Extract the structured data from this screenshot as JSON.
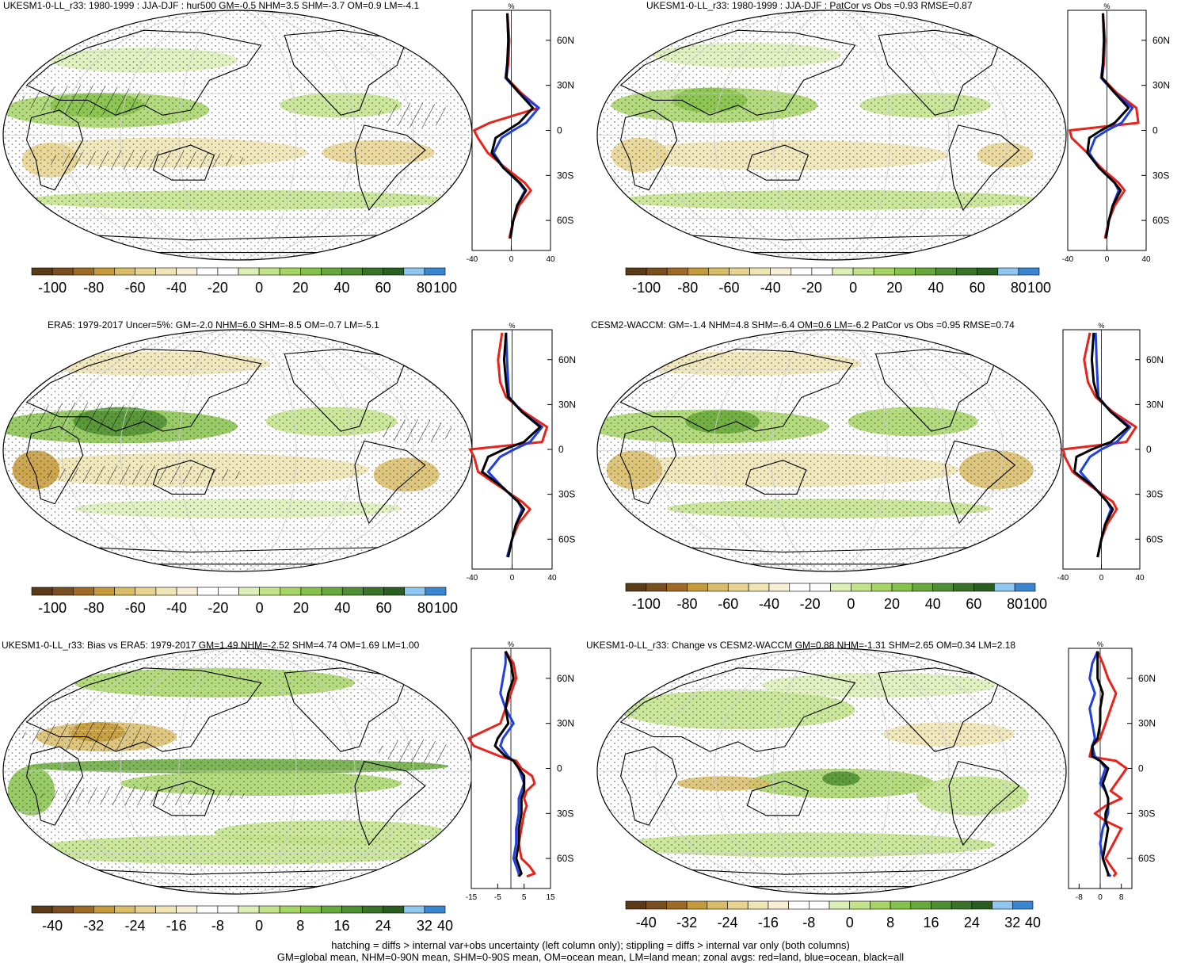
{
  "panels": [
    {
      "title": "UKESM1-0-LL_r33: 1980-1999 : JJA-DJF : hur500 GM=-0.5 NHM=3.5 SHM=-3.7 OM=0.9 LM=-4.1",
      "colorbar_labels": [
        "-100",
        "-80",
        "-60",
        "-40",
        "-20",
        "0",
        "20",
        "40",
        "60",
        "80",
        "100"
      ],
      "hatching": true,
      "profile": {
        "unit_label": "%",
        "x_tick_labels": [
          "-40",
          "0",
          "40"
        ],
        "xlim": [
          -40,
          40
        ],
        "y_tick_labels": [
          "60N",
          "30N",
          "0",
          "30S",
          "60S"
        ],
        "lines": [
          {
            "name": "land",
            "color": "#e8231c",
            "lat": [
              78,
              60,
              45,
              35,
              25,
              15,
              5,
              0,
              -5,
              -15,
              -25,
              -35,
              -40,
              -50,
              -60,
              -72
            ],
            "value": [
              -4,
              -2,
              -3,
              -5,
              10,
              28,
              -22,
              -38,
              -34,
              -24,
              -6,
              14,
              20,
              8,
              2,
              -2
            ]
          },
          {
            "name": "ocean",
            "color": "#1f3fe0",
            "lat": [
              78,
              60,
              45,
              35,
              25,
              15,
              5,
              0,
              -5,
              -15,
              -25,
              -35,
              -40,
              -50,
              -60,
              -72
            ],
            "value": [
              -4,
              -3,
              -4,
              -6,
              8,
              28,
              15,
              2,
              -10,
              -18,
              -8,
              8,
              14,
              6,
              2,
              -1
            ]
          },
          {
            "name": "all",
            "color": "#000000",
            "lat": [
              78,
              60,
              45,
              35,
              25,
              15,
              5,
              0,
              -5,
              -15,
              -25,
              -35,
              -40,
              -50,
              -60,
              -72
            ],
            "value": [
              -4,
              -3,
              -4,
              -5,
              8,
              22,
              8,
              -4,
              -16,
              -20,
              -8,
              9,
              15,
              6,
              2,
              -1
            ]
          }
        ]
      }
    },
    {
      "title": "UKESM1-0-LL_r33: 1980-1999 : JJA-DJF : PatCor vs Obs =0.93 RMSE=0.87",
      "colorbar_labels": [
        "-100",
        "-80",
        "-60",
        "-40",
        "-20",
        "0",
        "20",
        "40",
        "60",
        "80",
        "100"
      ],
      "hatching": false,
      "profile": {
        "unit_label": "%",
        "x_tick_labels": [
          "-40",
          "0",
          "40"
        ],
        "xlim": [
          -40,
          40
        ],
        "y_tick_labels": [
          "60N",
          "30N",
          "0",
          "30S",
          "60S"
        ],
        "lines": [
          {
            "name": "land",
            "color": "#e8231c",
            "lat": [
              78,
              60,
              45,
              35,
              25,
              15,
              5,
              0,
              -5,
              -15,
              -25,
              -35,
              -40,
              -50,
              -60,
              -72
            ],
            "value": [
              -4,
              -2,
              -3,
              -5,
              10,
              30,
              32,
              -38,
              -36,
              -20,
              -6,
              12,
              18,
              8,
              2,
              -2
            ]
          },
          {
            "name": "ocean",
            "color": "#1f3fe0",
            "lat": [
              78,
              60,
              45,
              35,
              25,
              15,
              5,
              0,
              -5,
              -15,
              -25,
              -35,
              -40,
              -50,
              -60,
              -72
            ],
            "value": [
              -4,
              -3,
              -4,
              -6,
              8,
              26,
              15,
              0,
              -12,
              -18,
              -8,
              8,
              12,
              6,
              2,
              -1
            ]
          },
          {
            "name": "all",
            "color": "#000000",
            "lat": [
              78,
              60,
              45,
              35,
              25,
              15,
              5,
              0,
              -5,
              -15,
              -25,
              -35,
              -40,
              -50,
              -60,
              -72
            ],
            "value": [
              -4,
              -3,
              -4,
              -5,
              8,
              22,
              8,
              -6,
              -18,
              -20,
              -8,
              8,
              14,
              6,
              2,
              -1
            ]
          }
        ]
      }
    },
    {
      "title": "ERA5: 1979-2017 Uncer=5%: GM=-2.0 NHM=6.0 SHM=-8.5 OM=-0.7 LM=-5.1",
      "colorbar_labels": [
        "-100",
        "-80",
        "-60",
        "-40",
        "-20",
        "0",
        "20",
        "40",
        "60",
        "80",
        "100"
      ],
      "hatching": true,
      "profile": {
        "unit_label": "%",
        "x_tick_labels": [
          "-40",
          "0",
          "40"
        ],
        "xlim": [
          -40,
          40
        ],
        "y_tick_labels": [
          "60N",
          "30N",
          "0",
          "30S",
          "60S"
        ],
        "lines": [
          {
            "name": "land",
            "color": "#e8231c",
            "lat": [
              78,
              60,
              45,
              35,
              25,
              15,
              5,
              0,
              -5,
              -15,
              -25,
              -35,
              -40,
              -50,
              -60,
              -72
            ],
            "value": [
              -10,
              -14,
              -12,
              -6,
              12,
              35,
              30,
              -42,
              -38,
              -34,
              -12,
              10,
              18,
              6,
              0,
              -4
            ]
          },
          {
            "name": "ocean",
            "color": "#1f3fe0",
            "lat": [
              78,
              60,
              45,
              35,
              25,
              15,
              5,
              0,
              -5,
              -15,
              -25,
              -35,
              -40,
              -50,
              -60,
              -72
            ],
            "value": [
              -6,
              -5,
              -4,
              -3,
              10,
              30,
              18,
              2,
              -12,
              -24,
              -10,
              6,
              10,
              4,
              0,
              -5
            ]
          },
          {
            "name": "all",
            "color": "#000000",
            "lat": [
              78,
              60,
              45,
              35,
              25,
              15,
              5,
              0,
              -5,
              -15,
              -25,
              -35,
              -40,
              -50,
              -60,
              -72
            ],
            "value": [
              -6,
              -8,
              -6,
              -4,
              10,
              28,
              12,
              -8,
              -24,
              -30,
              -10,
              6,
              12,
              4,
              0,
              -4
            ]
          }
        ]
      }
    },
    {
      "title": "CESM2-WACCM: GM=-1.4 NHM=4.8 SHM=-6.4 OM=0.6 LM=-6.2 PatCor vs Obs =0.95 RMSE=0.74",
      "colorbar_labels": [
        "-100",
        "-80",
        "-60",
        "-40",
        "-20",
        "0",
        "20",
        "40",
        "60",
        "80",
        "100"
      ],
      "hatching": false,
      "profile": {
        "unit_label": "%",
        "x_tick_labels": [
          "-40",
          "0",
          "40"
        ],
        "xlim": [
          -40,
          40
        ],
        "y_tick_labels": [
          "60N",
          "30N",
          "0",
          "30S",
          "60S"
        ],
        "lines": [
          {
            "name": "land",
            "color": "#e8231c",
            "lat": [
              78,
              60,
              45,
              35,
              25,
              15,
              5,
              0,
              -5,
              -15,
              -25,
              -35,
              -40,
              -50,
              -60,
              -72
            ],
            "value": [
              -12,
              -18,
              -14,
              -6,
              12,
              36,
              26,
              -40,
              -38,
              -30,
              -10,
              12,
              16,
              6,
              0,
              -4
            ]
          },
          {
            "name": "ocean",
            "color": "#1f3fe0",
            "lat": [
              78,
              60,
              45,
              35,
              25,
              15,
              5,
              0,
              -5,
              -15,
              -25,
              -35,
              -40,
              -50,
              -60,
              -72
            ],
            "value": [
              -6,
              -5,
              -4,
              -3,
              10,
              30,
              16,
              0,
              -12,
              -22,
              -8,
              6,
              10,
              4,
              0,
              -4
            ]
          },
          {
            "name": "all",
            "color": "#000000",
            "lat": [
              78,
              60,
              45,
              35,
              25,
              15,
              5,
              0,
              -5,
              -15,
              -25,
              -35,
              -40,
              -50,
              -60,
              -72
            ],
            "value": [
              -8,
              -10,
              -8,
              -4,
              10,
              28,
              10,
              -10,
              -26,
              -28,
              -8,
              6,
              12,
              4,
              0,
              -4
            ]
          }
        ]
      }
    },
    {
      "title": "UKESM1-0-LL_r33: Bias vs ERA5: 1979-2017 GM=1.49 NHM=-2.52 SHM=4.74 OM=1.69 LM=1.00",
      "colorbar_labels": [
        "-40",
        "-32",
        "-24",
        "-16",
        "-8",
        "0",
        "8",
        "16",
        "24",
        "32",
        "40"
      ],
      "hatching": true,
      "profile": {
        "unit_label": "%",
        "x_tick_labels": [
          "-15",
          "-5",
          "5",
          "15"
        ],
        "xlim": [
          -15,
          15
        ],
        "y_tick_labels": [
          "60N",
          "30N",
          "0",
          "30S",
          "60S"
        ],
        "lines": [
          {
            "name": "land",
            "color": "#e8231c",
            "lat": [
              78,
              70,
              60,
              50,
              40,
              30,
              20,
              15,
              8,
              5,
              0,
              -5,
              -10,
              -15,
              -20,
              -25,
              -30,
              -40,
              -50,
              -60,
              -65,
              -70,
              -72
            ],
            "value": [
              -2,
              1,
              2,
              0,
              -2,
              -4,
              -16,
              -14,
              -4,
              2,
              4,
              8,
              9,
              6,
              5,
              6,
              5,
              4,
              3,
              4,
              7,
              9,
              6
            ]
          },
          {
            "name": "ocean",
            "color": "#1f3fe0",
            "lat": [
              78,
              70,
              60,
              50,
              40,
              30,
              20,
              15,
              8,
              5,
              0,
              -5,
              -10,
              -15,
              -20,
              -25,
              -30,
              -40,
              -50,
              -60,
              -65,
              -70,
              -72
            ],
            "value": [
              -2,
              -2,
              -3,
              -4,
              -2,
              1,
              -3,
              -4,
              -1,
              1,
              3,
              4,
              5,
              4,
              3,
              3,
              3,
              2,
              2,
              1,
              2,
              3,
              3
            ]
          },
          {
            "name": "all",
            "color": "#000000",
            "lat": [
              78,
              70,
              60,
              50,
              40,
              30,
              20,
              15,
              8,
              5,
              0,
              -5,
              -10,
              -15,
              -20,
              -25,
              -30,
              -40,
              -50,
              -60,
              -65,
              -70,
              -72
            ],
            "value": [
              -2,
              0,
              1,
              -1,
              -2,
              -1,
              -5,
              -6,
              -2,
              1,
              3,
              5,
              5,
              5,
              4,
              4,
              4,
              3,
              3,
              2,
              3,
              4,
              3
            ]
          }
        ]
      }
    },
    {
      "title": "UKESM1-0-LL_r33: Change vs CESM2-WACCM GM=0.88 NHM=-1.31 SHM=2.65 OM=0.34 LM=2.18",
      "colorbar_labels": [
        "-40",
        "-32",
        "-24",
        "-16",
        "-8",
        "0",
        "8",
        "16",
        "24",
        "32",
        "40"
      ],
      "hatching": false,
      "profile": {
        "unit_label": "%",
        "x_tick_labels": [
          "-8",
          "0",
          "8"
        ],
        "xlim": [
          -12,
          12
        ],
        "y_tick_labels": [
          "60N",
          "30N",
          "0",
          "30S",
          "60S"
        ],
        "lines": [
          {
            "name": "land",
            "color": "#e8231c",
            "lat": [
              78,
              70,
              60,
              50,
              40,
              30,
              20,
              15,
              8,
              5,
              0,
              -5,
              -10,
              -15,
              -20,
              -25,
              -30,
              -35,
              -40,
              -50,
              -60,
              -65,
              -70,
              -72
            ],
            "value": [
              -1,
              1,
              3,
              6,
              4,
              2,
              0,
              -3,
              -4,
              6,
              10,
              8,
              6,
              4,
              8,
              2,
              -2,
              2,
              8,
              5,
              2,
              4,
              6,
              5
            ]
          },
          {
            "name": "ocean",
            "color": "#1f3fe0",
            "lat": [
              78,
              70,
              60,
              50,
              40,
              30,
              20,
              15,
              8,
              5,
              0,
              -5,
              -10,
              -15,
              -20,
              -25,
              -30,
              -35,
              -40,
              -50,
              -60,
              -65,
              -70,
              -72
            ],
            "value": [
              -1,
              -3,
              -4,
              -2,
              -4,
              -3,
              -2,
              -3,
              -2,
              0,
              2,
              1,
              0,
              2,
              3,
              3,
              3,
              2,
              1,
              0,
              1,
              2,
              3,
              4
            ]
          },
          {
            "name": "all",
            "color": "#000000",
            "lat": [
              78,
              70,
              60,
              50,
              40,
              30,
              20,
              15,
              8,
              5,
              0,
              -5,
              -10,
              -15,
              -20,
              -25,
              -30,
              -35,
              -40,
              -50,
              -60,
              -65,
              -70,
              -72
            ],
            "value": [
              -1,
              -1,
              -1,
              1,
              0,
              0,
              -1,
              -3,
              -3,
              0,
              3,
              2,
              1,
              2,
              3,
              3,
              2,
              2,
              3,
              2,
              1,
              2,
              3,
              3
            ]
          }
        ]
      }
    }
  ],
  "footer": {
    "line1": "hatching = diffs > internal var+obs uncertainty (left column only); stippling = diffs > internal var only (both columns)",
    "line2": "GM=global mean, NHM=0-90N mean, SHM=0-90S mean, OM=ocean mean, LM=land mean; zonal avgs: red=land, blue=ocean, black=all"
  },
  "colors": {
    "colorbar": [
      "#5a3a17",
      "#7a4f1f",
      "#9e6a25",
      "#c49a3a",
      "#d8bc68",
      "#e6d38f",
      "#efe4b3",
      "#f6efd6",
      "#ffffff",
      "#ffffff",
      "#dcefb6",
      "#c2e38a",
      "#a6d465",
      "#86c24b",
      "#66a83b",
      "#4f8f33",
      "#3a7328",
      "#2a5e20",
      "#8ec7f0",
      "#3a86d0"
    ]
  }
}
